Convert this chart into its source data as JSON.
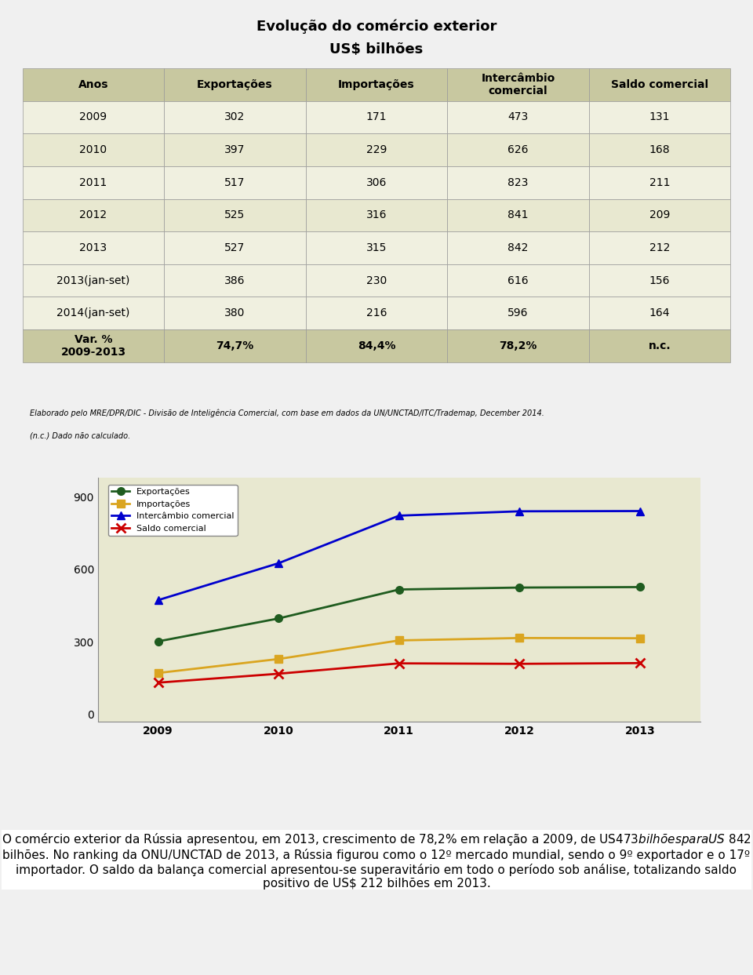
{
  "title_line1": "Evolução do comércio exterior",
  "title_line2": "US$ bilhões",
  "table_headers": [
    "Anos",
    "Exportações",
    "Importações",
    "Intercâmbio\ncomercial",
    "Saldo comercial"
  ],
  "table_rows": [
    [
      "2009",
      "302",
      "171",
      "473",
      "131"
    ],
    [
      "2010",
      "397",
      "229",
      "626",
      "168"
    ],
    [
      "2011",
      "517",
      "306",
      "823",
      "211"
    ],
    [
      "2012",
      "525",
      "316",
      "841",
      "209"
    ],
    [
      "2013",
      "527",
      "315",
      "842",
      "212"
    ]
  ],
  "table_rows_jan": [
    [
      "2013(jan-set)",
      "386",
      "230",
      "616",
      "156"
    ],
    [
      "2014(jan-set)",
      "380",
      "216",
      "596",
      "164"
    ]
  ],
  "table_row_var": [
    "Var. %\n2009-2013",
    "74,7%",
    "84,4%",
    "78,2%",
    "n.c."
  ],
  "footnote1": "Elaborado pelo MRE/DPR/DIC - Divisão de Inteligência Comercial, com base em dados da UN/UNCTAD/ITC/Trademap, December 2014.",
  "footnote2": "(n.c.) Dado não calculado.",
  "chart_years": [
    2009,
    2010,
    2011,
    2012,
    2013
  ],
  "exportacoes": [
    302,
    397,
    517,
    525,
    527
  ],
  "importacoes": [
    171,
    229,
    306,
    316,
    315
  ],
  "intercambio": [
    473,
    626,
    823,
    841,
    842
  ],
  "saldo": [
    131,
    168,
    211,
    209,
    212
  ],
  "legend_labels": [
    "Exportações",
    "Importações",
    "Intercâmbio comercial",
    "Saldo comercial"
  ],
  "line_colors": [
    "#1F5C1F",
    "#DAA520",
    "#0000CD",
    "#CC0000"
  ],
  "line_markers": [
    "o",
    "s",
    "^",
    "x"
  ],
  "chart_yticks": [
    0,
    300,
    600,
    900
  ],
  "chart_ylim": [
    -30,
    980
  ],
  "bg_color": "#F5F5DC",
  "chart_bg": "#E8E8D0",
  "table_header_bg": "#C8C8A0",
  "table_row_bg1": "#F0F0E0",
  "table_row_bg2": "#E8E8D0",
  "table_var_bg": "#C8C8A0",
  "outer_bg": "#F0F0F0",
  "bottom_text": "O comércio exterior da Rússia apresentou, em 2013, crescimento de 78,2% em relação a 2009, de US$ 473 bilhões para US$ 842 bilhões. No ranking da ONU/UNCTAD de 2013, a Rússia figurou como o 12º mercado mundial, sendo o 9º exportador e o 17º importador. O saldo da balança comercial apresentou-se superavitário em todo o período sob análise, totalizando saldo positivo de US$ 212 bilhões em 2013."
}
